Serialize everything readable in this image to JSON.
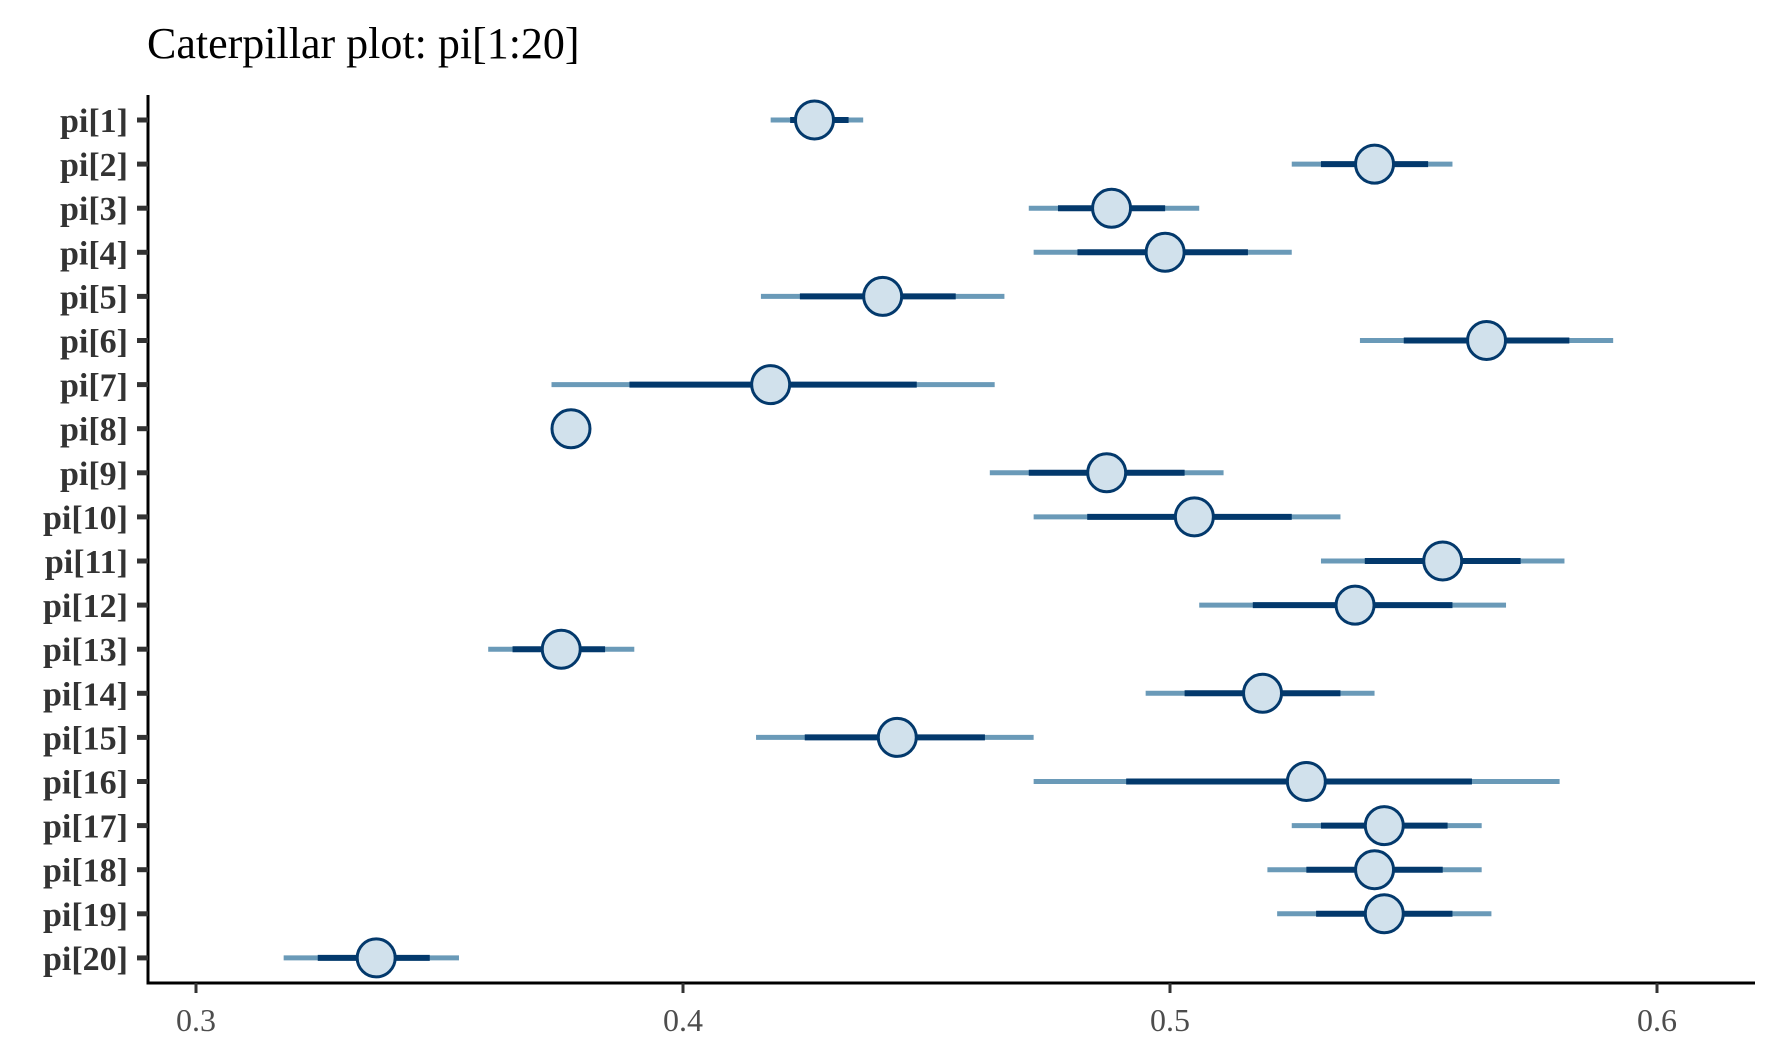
{
  "chart_data": {
    "type": "caterpillar",
    "title": "Caterpillar plot: pi[1:20]",
    "xlabel": "",
    "ylabel": "",
    "xlim": [
      0.29,
      0.62
    ],
    "x_ticks": [
      0.3,
      0.4,
      0.5,
      0.6
    ],
    "x_tick_labels": [
      "0.3",
      "0.4",
      "0.5",
      "0.6"
    ],
    "grid": false,
    "legend": "none",
    "colors": {
      "outer_interval": "#6a9ab8",
      "inner_interval": "#03396c",
      "point_fill": "#d1e1ec",
      "point_stroke": "#03396c",
      "axis": "#000000"
    },
    "parameters": [
      {
        "label": "pi[1]",
        "median": 0.427,
        "inner": [
          0.422,
          0.434
        ],
        "outer": [
          0.418,
          0.437
        ]
      },
      {
        "label": "pi[2]",
        "median": 0.542,
        "inner": [
          0.531,
          0.553
        ],
        "outer": [
          0.525,
          0.558
        ]
      },
      {
        "label": "pi[3]",
        "median": 0.488,
        "inner": [
          0.477,
          0.499
        ],
        "outer": [
          0.471,
          0.506
        ]
      },
      {
        "label": "pi[4]",
        "median": 0.499,
        "inner": [
          0.481,
          0.516
        ],
        "outer": [
          0.472,
          0.525
        ]
      },
      {
        "label": "pi[5]",
        "median": 0.441,
        "inner": [
          0.424,
          0.456
        ],
        "outer": [
          0.416,
          0.466
        ]
      },
      {
        "label": "pi[6]",
        "median": 0.565,
        "inner": [
          0.548,
          0.582
        ],
        "outer": [
          0.539,
          0.591
        ]
      },
      {
        "label": "pi[7]",
        "median": 0.418,
        "inner": [
          0.389,
          0.448
        ],
        "outer": [
          0.373,
          0.464
        ]
      },
      {
        "label": "pi[8]",
        "median": 0.377,
        "inner": [
          0.377,
          0.377
        ],
        "outer": [
          0.377,
          0.377
        ]
      },
      {
        "label": "pi[9]",
        "median": 0.487,
        "inner": [
          0.471,
          0.503
        ],
        "outer": [
          0.463,
          0.511
        ]
      },
      {
        "label": "pi[10]",
        "median": 0.505,
        "inner": [
          0.483,
          0.525
        ],
        "outer": [
          0.472,
          0.535
        ]
      },
      {
        "label": "pi[11]",
        "median": 0.556,
        "inner": [
          0.54,
          0.572
        ],
        "outer": [
          0.531,
          0.581
        ]
      },
      {
        "label": "pi[12]",
        "median": 0.538,
        "inner": [
          0.517,
          0.558
        ],
        "outer": [
          0.506,
          0.569
        ]
      },
      {
        "label": "pi[13]",
        "median": 0.375,
        "inner": [
          0.365,
          0.384
        ],
        "outer": [
          0.36,
          0.39
        ]
      },
      {
        "label": "pi[14]",
        "median": 0.519,
        "inner": [
          0.503,
          0.535
        ],
        "outer": [
          0.495,
          0.542
        ]
      },
      {
        "label": "pi[15]",
        "median": 0.444,
        "inner": [
          0.425,
          0.462
        ],
        "outer": [
          0.415,
          0.472
        ]
      },
      {
        "label": "pi[16]",
        "median": 0.528,
        "inner": [
          0.491,
          0.562
        ],
        "outer": [
          0.472,
          0.58
        ]
      },
      {
        "label": "pi[17]",
        "median": 0.544,
        "inner": [
          0.531,
          0.557
        ],
        "outer": [
          0.525,
          0.564
        ]
      },
      {
        "label": "pi[18]",
        "median": 0.542,
        "inner": [
          0.528,
          0.556
        ],
        "outer": [
          0.52,
          0.564
        ]
      },
      {
        "label": "pi[19]",
        "median": 0.544,
        "inner": [
          0.53,
          0.558
        ],
        "outer": [
          0.522,
          0.566
        ]
      },
      {
        "label": "pi[20]",
        "median": 0.337,
        "inner": [
          0.325,
          0.348
        ],
        "outer": [
          0.318,
          0.354
        ]
      }
    ]
  }
}
